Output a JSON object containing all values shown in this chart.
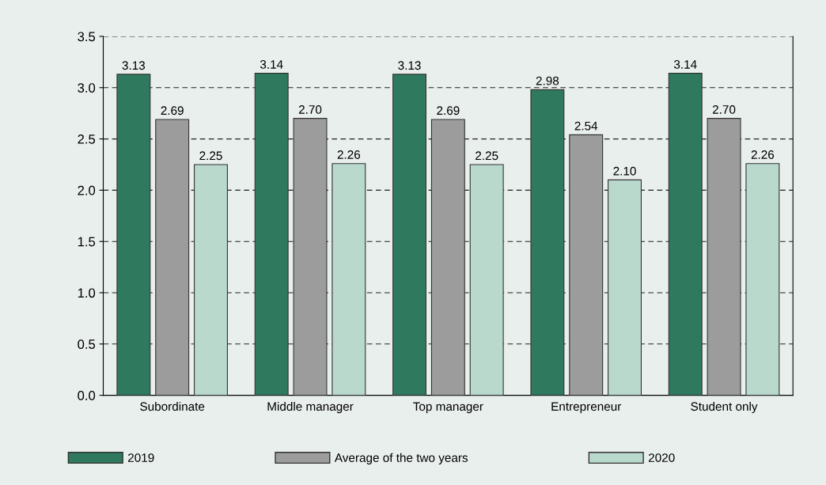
{
  "chart_data": {
    "type": "bar",
    "categories": [
      "Subordinate",
      "Middle manager",
      "Top manager",
      "Entrepreneur",
      "Student only"
    ],
    "series": [
      {
        "name": "2019",
        "color": "#2f7a5f",
        "values": [
          3.13,
          3.14,
          3.13,
          2.98,
          3.14
        ],
        "value_labels": [
          "3.13",
          "3.14",
          "3.13",
          "2.98",
          "3.14"
        ]
      },
      {
        "name": "Average of the two years",
        "color": "#9c9c9c",
        "values": [
          2.69,
          2.7,
          2.69,
          2.54,
          2.7
        ],
        "value_labels": [
          "2.69",
          "2.70",
          "2.69",
          "2.54",
          "2.70"
        ]
      },
      {
        "name": "2020",
        "color": "#b9d9cd",
        "values": [
          2.25,
          2.26,
          2.25,
          2.1,
          2.26
        ],
        "value_labels": [
          "2.25",
          "2.26",
          "2.25",
          "2.10",
          "2.26"
        ]
      }
    ],
    "ylim": [
      0,
      3.5
    ],
    "yticks": [
      {
        "value": 0,
        "label": "0.0"
      },
      {
        "value": 0.5,
        "label": "0.5"
      },
      {
        "value": 1,
        "label": "1.0"
      },
      {
        "value": 1.5,
        "label": "1.5"
      },
      {
        "value": 2,
        "label": "2.0"
      },
      {
        "value": 2.5,
        "label": "2.5"
      },
      {
        "value": 3,
        "label": "3.0"
      },
      {
        "value": 3.5,
        "label": "3.5"
      }
    ],
    "grid": "y",
    "line_style": "dashed",
    "legend": "bottom"
  }
}
